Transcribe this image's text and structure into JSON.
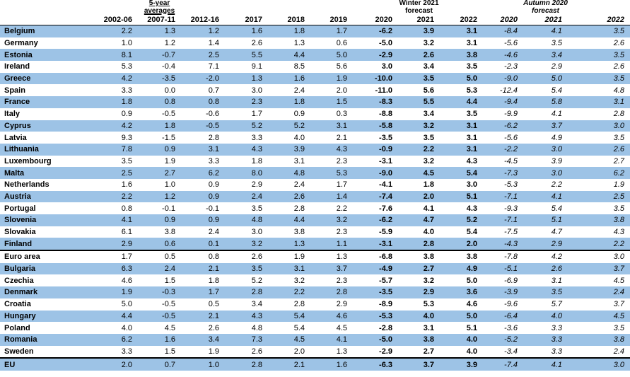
{
  "headers": {
    "avg_line1": "5-year",
    "avg_line2": "averages",
    "winter_line1": "Winter 2021",
    "winter_line2": "forecast",
    "autumn_line1": "Autumn 2020",
    "autumn_line2": "forecast",
    "columns": [
      "2002-06",
      "2007-11",
      "2012-16",
      "2017",
      "2018",
      "2019",
      "2020",
      "2021",
      "2022",
      "2020",
      "2021",
      "2022"
    ]
  },
  "rows": [
    {
      "country": "Belgium",
      "v": [
        "2.2",
        "1.3",
        "1.2",
        "1.6",
        "1.8",
        "1.7",
        "-6.2",
        "3.9",
        "3.1",
        "-8.4",
        "4.1",
        "3.5"
      ]
    },
    {
      "country": "Germany",
      "v": [
        "1.0",
        "1.2",
        "1.4",
        "2.6",
        "1.3",
        "0.6",
        "-5.0",
        "3.2",
        "3.1",
        "-5.6",
        "3.5",
        "2.6"
      ]
    },
    {
      "country": "Estonia",
      "v": [
        "8.1",
        "-0.7",
        "2.5",
        "5.5",
        "4.4",
        "5.0",
        "-2.9",
        "2.6",
        "3.8",
        "-4.6",
        "3.4",
        "3.5"
      ]
    },
    {
      "country": "Ireland",
      "v": [
        "5.3",
        "-0.4",
        "7.1",
        "9.1",
        "8.5",
        "5.6",
        "3.0",
        "3.4",
        "3.5",
        "-2.3",
        "2.9",
        "2.6"
      ]
    },
    {
      "country": "Greece",
      "v": [
        "4.2",
        "-3.5",
        "-2.0",
        "1.3",
        "1.6",
        "1.9",
        "-10.0",
        "3.5",
        "5.0",
        "-9.0",
        "5.0",
        "3.5"
      ]
    },
    {
      "country": "Spain",
      "v": [
        "3.3",
        "0.0",
        "0.7",
        "3.0",
        "2.4",
        "2.0",
        "-11.0",
        "5.6",
        "5.3",
        "-12.4",
        "5.4",
        "4.8"
      ]
    },
    {
      "country": "France",
      "v": [
        "1.8",
        "0.8",
        "0.8",
        "2.3",
        "1.8",
        "1.5",
        "-8.3",
        "5.5",
        "4.4",
        "-9.4",
        "5.8",
        "3.1"
      ]
    },
    {
      "country": "Italy",
      "v": [
        "0.9",
        "-0.5",
        "-0.6",
        "1.7",
        "0.9",
        "0.3",
        "-8.8",
        "3.4",
        "3.5",
        "-9.9",
        "4.1",
        "2.8"
      ]
    },
    {
      "country": "Cyprus",
      "v": [
        "4.2",
        "1.8",
        "-0.5",
        "5.2",
        "5.2",
        "3.1",
        "-5.8",
        "3.2",
        "3.1",
        "-6.2",
        "3.7",
        "3.0"
      ]
    },
    {
      "country": "Latvia",
      "v": [
        "9.3",
        "-1.5",
        "2.8",
        "3.3",
        "4.0",
        "2.1",
        "-3.5",
        "3.5",
        "3.1",
        "-5.6",
        "4.9",
        "3.5"
      ]
    },
    {
      "country": "Lithuania",
      "v": [
        "7.8",
        "0.9",
        "3.1",
        "4.3",
        "3.9",
        "4.3",
        "-0.9",
        "2.2",
        "3.1",
        "-2.2",
        "3.0",
        "2.6"
      ]
    },
    {
      "country": "Luxembourg",
      "v": [
        "3.5",
        "1.9",
        "3.3",
        "1.8",
        "3.1",
        "2.3",
        "-3.1",
        "3.2",
        "4.3",
        "-4.5",
        "3.9",
        "2.7"
      ]
    },
    {
      "country": "Malta",
      "v": [
        "2.5",
        "2.7",
        "6.2",
        "8.0",
        "4.8",
        "5.3",
        "-9.0",
        "4.5",
        "5.4",
        "-7.3",
        "3.0",
        "6.2"
      ]
    },
    {
      "country": "Netherlands",
      "v": [
        "1.6",
        "1.0",
        "0.9",
        "2.9",
        "2.4",
        "1.7",
        "-4.1",
        "1.8",
        "3.0",
        "-5.3",
        "2.2",
        "1.9"
      ]
    },
    {
      "country": "Austria",
      "v": [
        "2.2",
        "1.2",
        "0.9",
        "2.4",
        "2.6",
        "1.4",
        "-7.4",
        "2.0",
        "5.1",
        "-7.1",
        "4.1",
        "2.5"
      ]
    },
    {
      "country": "Portugal",
      "v": [
        "0.8",
        "-0.1",
        "-0.1",
        "3.5",
        "2.8",
        "2.2",
        "-7.6",
        "4.1",
        "4.3",
        "-9.3",
        "5.4",
        "3.5"
      ]
    },
    {
      "country": "Slovenia",
      "v": [
        "4.1",
        "0.9",
        "0.9",
        "4.8",
        "4.4",
        "3.2",
        "-6.2",
        "4.7",
        "5.2",
        "-7.1",
        "5.1",
        "3.8"
      ]
    },
    {
      "country": "Slovakia",
      "v": [
        "6.1",
        "3.8",
        "2.4",
        "3.0",
        "3.8",
        "2.3",
        "-5.9",
        "4.0",
        "5.4",
        "-7.5",
        "4.7",
        "4.3"
      ]
    },
    {
      "country": "Finland",
      "v": [
        "2.9",
        "0.6",
        "0.1",
        "3.2",
        "1.3",
        "1.1",
        "-3.1",
        "2.8",
        "2.0",
        "-4.3",
        "2.9",
        "2.2"
      ]
    },
    {
      "country": "Euro area",
      "v": [
        "1.7",
        "0.5",
        "0.8",
        "2.6",
        "1.9",
        "1.3",
        "-6.8",
        "3.8",
        "3.8",
        "-7.8",
        "4.2",
        "3.0"
      ]
    },
    {
      "country": "Bulgaria",
      "v": [
        "6.3",
        "2.4",
        "2.1",
        "3.5",
        "3.1",
        "3.7",
        "-4.9",
        "2.7",
        "4.9",
        "-5.1",
        "2.6",
        "3.7"
      ]
    },
    {
      "country": "Czechia",
      "v": [
        "4.6",
        "1.5",
        "1.8",
        "5.2",
        "3.2",
        "2.3",
        "-5.7",
        "3.2",
        "5.0",
        "-6.9",
        "3.1",
        "4.5"
      ]
    },
    {
      "country": "Denmark",
      "v": [
        "1.9",
        "-0.3",
        "1.7",
        "2.8",
        "2.2",
        "2.8",
        "-3.5",
        "2.9",
        "3.6",
        "-3.9",
        "3.5",
        "2.4"
      ]
    },
    {
      "country": "Croatia",
      "v": [
        "5.0",
        "-0.5",
        "0.5",
        "3.4",
        "2.8",
        "2.9",
        "-8.9",
        "5.3",
        "4.6",
        "-9.6",
        "5.7",
        "3.7"
      ]
    },
    {
      "country": "Hungary",
      "v": [
        "4.4",
        "-0.5",
        "2.1",
        "4.3",
        "5.4",
        "4.6",
        "-5.3",
        "4.0",
        "5.0",
        "-6.4",
        "4.0",
        "4.5"
      ]
    },
    {
      "country": "Poland",
      "v": [
        "4.0",
        "4.5",
        "2.6",
        "4.8",
        "5.4",
        "4.5",
        "-2.8",
        "3.1",
        "5.1",
        "-3.6",
        "3.3",
        "3.5"
      ]
    },
    {
      "country": "Romania",
      "v": [
        "6.2",
        "1.6",
        "3.4",
        "7.3",
        "4.5",
        "4.1",
        "-5.0",
        "3.8",
        "4.0",
        "-5.2",
        "3.3",
        "3.8"
      ]
    },
    {
      "country": "Sweden",
      "v": [
        "3.3",
        "1.5",
        "1.9",
        "2.6",
        "2.0",
        "1.3",
        "-2.9",
        "2.7",
        "4.0",
        "-3.4",
        "3.3",
        "2.4"
      ]
    },
    {
      "country": "EU",
      "v": [
        "2.0",
        "0.7",
        "1.0",
        "2.8",
        "2.1",
        "1.6",
        "-6.3",
        "3.7",
        "3.9",
        "-7.4",
        "4.1",
        "3.0"
      ]
    }
  ],
  "shaded_rows": [
    0,
    2,
    4,
    6,
    8,
    10,
    12,
    14,
    16,
    18,
    20,
    22,
    24,
    26,
    28
  ],
  "separator_before_rows": [
    19,
    28
  ]
}
